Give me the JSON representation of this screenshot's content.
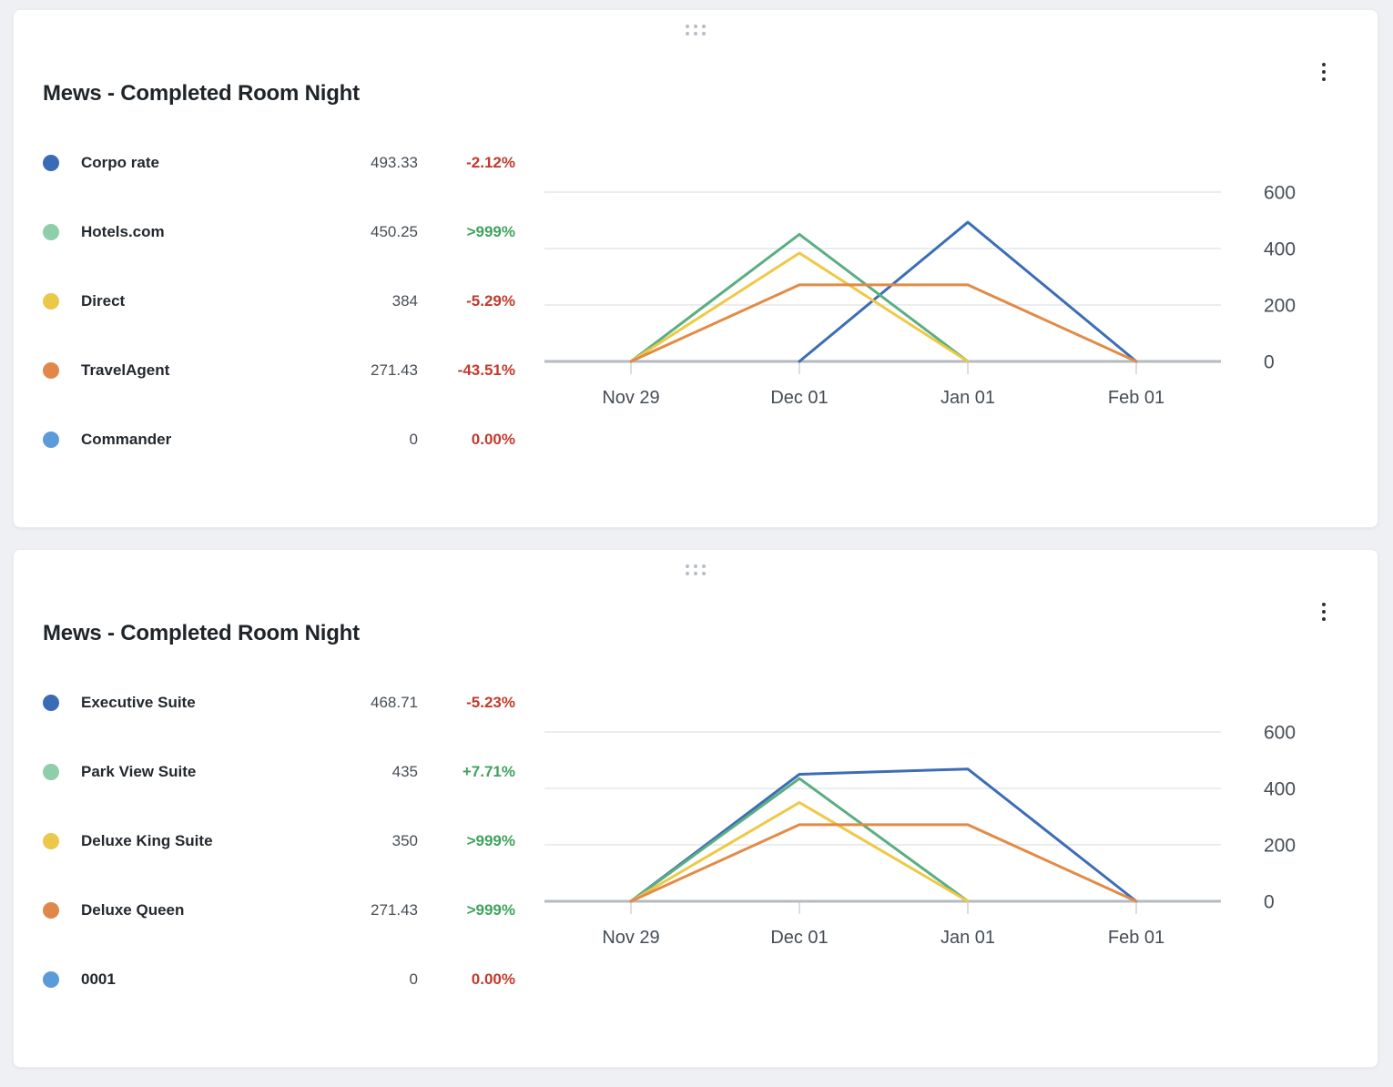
{
  "page": {
    "background": "#eef0f3"
  },
  "colors": {
    "negative_change": "#C23A2B",
    "positive_change": "#3EA35B",
    "axis_label": "#454c54",
    "gridline": "#e4e7eb",
    "zero_axis": "#b4bac3"
  },
  "cards": [
    {
      "title": "Mews - Completed Room Night",
      "drag_handle_icon": "drag-dots",
      "menu_icon": "kebab-menu",
      "legend": [
        {
          "label": "Corpo rate",
          "value": "493.33",
          "change": "-2.12%",
          "change_color": "#C23A2B",
          "dot_color": "#3A6CB5"
        },
        {
          "label": "Hotels.com",
          "value": "450.25",
          "change": ">999%",
          "change_color": "#3EA35B",
          "dot_color": "#8FCEAB"
        },
        {
          "label": "Direct",
          "value": "384",
          "change": "-5.29%",
          "change_color": "#C23A2B",
          "dot_color": "#ECC84A"
        },
        {
          "label": "TravelAgent",
          "value": "271.43",
          "change": "-43.51%",
          "change_color": "#C23A2B",
          "dot_color": "#E0884A"
        },
        {
          "label": "Commander",
          "value": "0",
          "change": "0.00%",
          "change_color": "#C23A2B",
          "dot_color": "#5B9BD9"
        }
      ],
      "chart_data": {
        "type": "line",
        "title": "Mews - Completed Room Night",
        "categories": [
          "Nov 29",
          "Dec 01",
          "Jan 01",
          "Feb 01"
        ],
        "series": [
          {
            "name": "Corpo rate",
            "line_color": "#3C6DB5",
            "values": [
              null,
              0,
              493.33,
              0
            ]
          },
          {
            "name": "Hotels.com",
            "line_color": "#5BAE82",
            "values": [
              0,
              450.25,
              0,
              null
            ]
          },
          {
            "name": "Direct",
            "line_color": "#EFC845",
            "values": [
              0,
              384,
              0,
              null
            ]
          },
          {
            "name": "TravelAgent",
            "line_color": "#E28B46",
            "values": [
              0,
              271.43,
              271.43,
              0
            ]
          },
          {
            "name": "Commander",
            "line_color": "#5B9BD9",
            "values": [
              0,
              0,
              0,
              0
            ]
          }
        ],
        "ylim": [
          0,
          600
        ],
        "yticks": [
          0,
          200,
          400,
          600
        ],
        "grid": true,
        "y_axis_side": "right",
        "legend_position": "left-panel"
      }
    },
    {
      "title": "Mews - Completed Room Night",
      "drag_handle_icon": "drag-dots",
      "menu_icon": "kebab-menu",
      "legend": [
        {
          "label": "Executive Suite",
          "value": "468.71",
          "change": "-5.23%",
          "change_color": "#C23A2B",
          "dot_color": "#3A6CB5"
        },
        {
          "label": "Park View Suite",
          "value": "435",
          "change": "+7.71%",
          "change_color": "#3EA35B",
          "dot_color": "#8FCEAB"
        },
        {
          "label": "Deluxe King Suite",
          "value": "350",
          "change": ">999%",
          "change_color": "#3EA35B",
          "dot_color": "#ECC84A"
        },
        {
          "label": "Deluxe Queen",
          "value": "271.43",
          "change": ">999%",
          "change_color": "#3EA35B",
          "dot_color": "#E0884A"
        },
        {
          "label": "0001",
          "value": "0",
          "change": "0.00%",
          "change_color": "#C23A2B",
          "dot_color": "#5B9BD9"
        }
      ],
      "chart_data": {
        "type": "line",
        "title": "Mews - Completed Room Night",
        "categories": [
          "Nov 29",
          "Dec 01",
          "Jan 01",
          "Feb 01"
        ],
        "series": [
          {
            "name": "Executive Suite",
            "line_color": "#3C6DB5",
            "values": [
              0,
              450,
              468.71,
              0
            ]
          },
          {
            "name": "Park View Suite",
            "line_color": "#5BAE82",
            "values": [
              0,
              435,
              0,
              null
            ]
          },
          {
            "name": "Deluxe King Suite",
            "line_color": "#EFC845",
            "values": [
              0,
              350,
              0,
              null
            ]
          },
          {
            "name": "Deluxe Queen",
            "line_color": "#E28B46",
            "values": [
              0,
              271.43,
              271.43,
              0
            ]
          },
          {
            "name": "0001",
            "line_color": "#5B9BD9",
            "values": [
              0,
              0,
              0,
              0
            ]
          }
        ],
        "ylim": [
          0,
          600
        ],
        "yticks": [
          0,
          200,
          400,
          600
        ],
        "grid": true,
        "y_axis_side": "right",
        "legend_position": "left-panel"
      }
    }
  ]
}
